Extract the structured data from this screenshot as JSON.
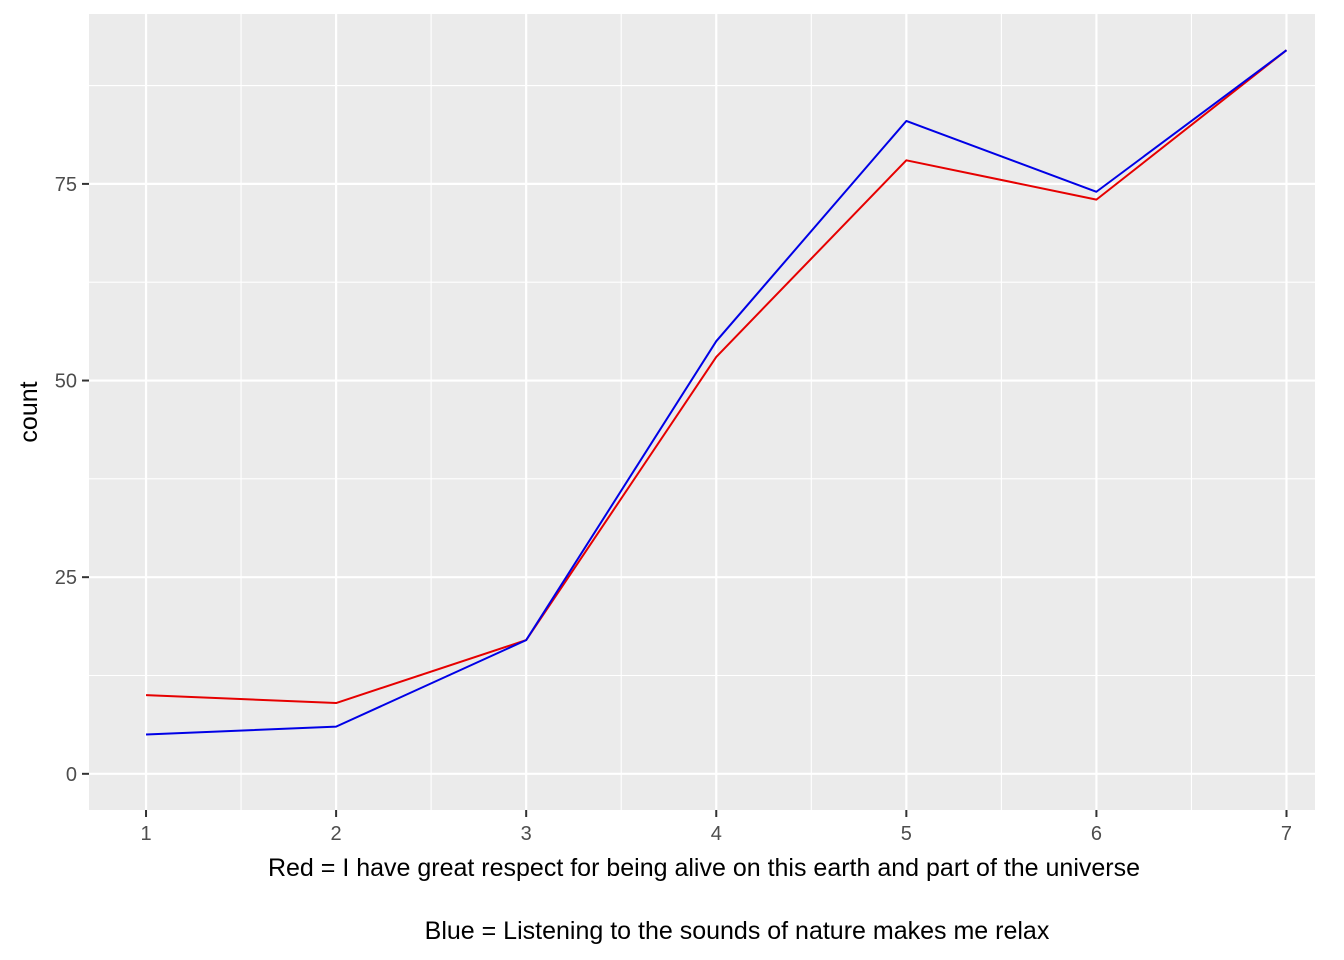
{
  "chart_data": {
    "type": "line",
    "title": "",
    "xlabel": "",
    "ylabel": "count",
    "x": [
      1,
      2,
      3,
      4,
      5,
      6,
      7
    ],
    "x_ticks": [
      "1",
      "2",
      "3",
      "4",
      "5",
      "6",
      "7"
    ],
    "y_ticks": [
      "0",
      "25",
      "50",
      "75"
    ],
    "xlim": [
      0.7,
      7.15
    ],
    "ylim": [
      -4.6,
      96.6
    ],
    "grid": true,
    "legend": "none",
    "series": [
      {
        "values": [
          10,
          9,
          17,
          53,
          78,
          73,
          92
        ],
        "color": "#e60000"
      },
      {
        "values": [
          5,
          6,
          17,
          55,
          83,
          74,
          92
        ],
        "color": "#0000e6"
      }
    ],
    "captions": [
      "Red = I have great respect for being alive on this earth and part of the universe",
      "Blue = Listening to the sounds of nature makes me relax"
    ]
  }
}
